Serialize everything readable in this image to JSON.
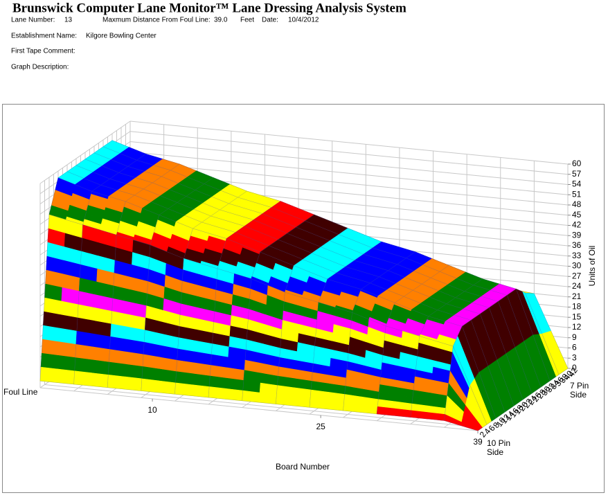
{
  "header": {
    "title": "Brunswick Computer Lane Monitor™ Lane Dressing Analysis System",
    "lane_number_label": "Lane Number:",
    "lane_number": "13",
    "max_distance_label": "Maxmum Distance From Foul Line:",
    "max_distance": "39.0",
    "distance_unit": "Feet",
    "date_label": "Date:",
    "date": "10/4/2012",
    "establishment_label": "Establishment Name:",
    "establishment": "Kilgore Bowling Center",
    "tape_comment_label": "First Tape Comment:",
    "graph_description_label": "Graph Description:"
  },
  "chart_data": {
    "type": "surface3d",
    "x_axis_label": "Board Number",
    "x_start_label": "Foul Line",
    "z_axis_label": "Units of Oil",
    "board_start_label": "10 Pin Side",
    "board_end_label": "7 Pin Side",
    "x": [
      0,
      3,
      6,
      9,
      12,
      15,
      18,
      21,
      24,
      27,
      30,
      33,
      36,
      39
    ],
    "boards": [
      2,
      6,
      10,
      14,
      18,
      22,
      26,
      30,
      34,
      38,
      42
    ],
    "z": [
      [
        2,
        49,
        58,
        58,
        58,
        58,
        58,
        58,
        58,
        52,
        46
      ],
      [
        2,
        47,
        55,
        55,
        55,
        55,
        55,
        55,
        55,
        50,
        44
      ],
      [
        2,
        45,
        53,
        53,
        53,
        53,
        53,
        53,
        53,
        48,
        42
      ],
      [
        2,
        43,
        50,
        50,
        50,
        50,
        50,
        50,
        50,
        45,
        40
      ],
      [
        2,
        40,
        47,
        47,
        47,
        47,
        47,
        47,
        47,
        42,
        38
      ],
      [
        2,
        38,
        45,
        45,
        45,
        45,
        45,
        45,
        45,
        41,
        36
      ],
      [
        2,
        36,
        42,
        42,
        42,
        42,
        42,
        42,
        42,
        38,
        34
      ],
      [
        2,
        33,
        39,
        39,
        39,
        39,
        39,
        39,
        39,
        35,
        31
      ],
      [
        2,
        31,
        36,
        36,
        36,
        36,
        36,
        36,
        36,
        32,
        29
      ],
      [
        2,
        29,
        34,
        34,
        34,
        34,
        34,
        34,
        34,
        31,
        27
      ],
      [
        2,
        26,
        31,
        31,
        31,
        31,
        31,
        31,
        31,
        28,
        25
      ],
      [
        2,
        24,
        28,
        28,
        28,
        28,
        28,
        28,
        28,
        25,
        22
      ],
      [
        2,
        22,
        26,
        26,
        26,
        26,
        26,
        26,
        26,
        23,
        21
      ],
      [
        0,
        0,
        0,
        0,
        0,
        0,
        0,
        0,
        0,
        0,
        0
      ]
    ],
    "xlim": [
      0,
      39
    ],
    "xticks": [
      10,
      25,
      39
    ],
    "board_lim": [
      2,
      42
    ],
    "board_ticks": [
      2,
      4,
      6,
      8,
      10,
      12,
      14,
      16,
      18,
      20,
      22,
      24,
      26,
      28,
      30,
      32,
      34,
      36,
      38,
      40,
      42
    ],
    "zlim": [
      0,
      60
    ],
    "zticks": [
      0,
      3,
      6,
      9,
      12,
      15,
      18,
      21,
      24,
      27,
      30,
      33,
      36,
      39,
      42,
      45,
      48,
      51,
      54,
      57,
      60
    ],
    "band_colors": [
      "#ff0000",
      "#ffff00",
      "#008000",
      "#ff8000",
      "#0000ff",
      "#00ffff",
      "#400000",
      "#ffff00",
      "#ff00ff",
      "#008000",
      "#ff8000",
      "#0000ff",
      "#00ffff",
      "#400000",
      "#ff0000",
      "#ffff00",
      "#008000",
      "#ff8000",
      "#0000ff",
      "#00ffff"
    ],
    "grid": true
  }
}
